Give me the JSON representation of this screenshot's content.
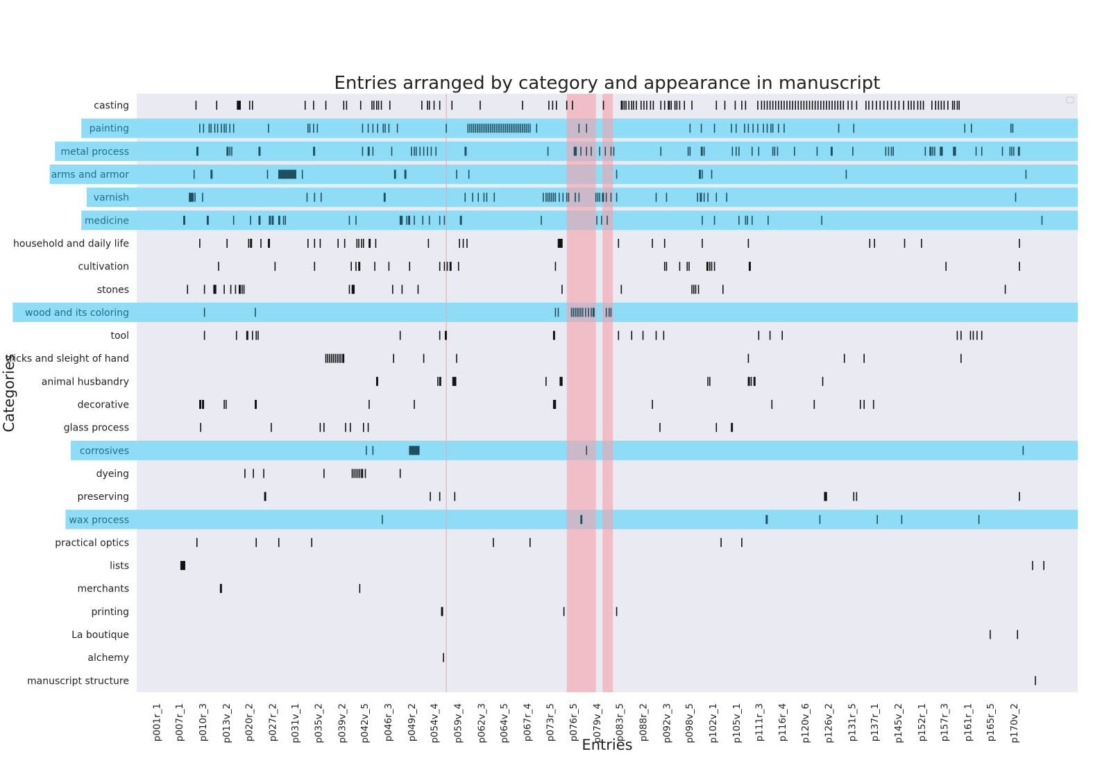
{
  "chart_data": {
    "type": "heatmap",
    "title": "Entries arranged by category and appearance in manuscript",
    "xlabel": "Entries",
    "ylabel": "Categories",
    "x_range": [
      0,
      1000
    ],
    "categories": [
      "casting",
      "painting",
      "metal process",
      "arms and armor",
      "varnish",
      "medicine",
      "household and daily life",
      "cultivation",
      "stones",
      "wood and its coloring",
      "tool",
      "tricks and sleight of hand",
      "animal husbandry",
      "decorative",
      "glass process",
      "corrosives",
      "dyeing",
      "preserving",
      "wax process",
      "practical optics",
      "lists",
      "merchants",
      "printing",
      "La boutique",
      "alchemy",
      "manuscript structure"
    ],
    "highlighted_categories": [
      "painting",
      "metal process",
      "arms and armor",
      "varnish",
      "medicine",
      "wood and its coloring",
      "corrosives",
      "wax process"
    ],
    "highlight_color": "#8fdcf7",
    "shaded_entry_ranges": [
      [
        457,
        488
      ],
      [
        495,
        506
      ]
    ],
    "shade_color": "#f4a0a8",
    "marker_line": 329,
    "x_ticks": [
      {
        "pos": 21,
        "label": "p001r_1"
      },
      {
        "pos": 45,
        "label": "p007r_1"
      },
      {
        "pos": 70,
        "label": "p010r_3"
      },
      {
        "pos": 95,
        "label": "p013v_2"
      },
      {
        "pos": 119,
        "label": "p020r_2"
      },
      {
        "pos": 144,
        "label": "p027r_2"
      },
      {
        "pos": 168,
        "label": "p031v_1"
      },
      {
        "pos": 193,
        "label": "p035v_2"
      },
      {
        "pos": 218,
        "label": "p039v_2"
      },
      {
        "pos": 242,
        "label": "p042v_5"
      },
      {
        "pos": 267,
        "label": "p046r_3"
      },
      {
        "pos": 292,
        "label": "p049r_2"
      },
      {
        "pos": 316,
        "label": "p054v_4"
      },
      {
        "pos": 341,
        "label": "p059v_4"
      },
      {
        "pos": 366,
        "label": "p062v_3"
      },
      {
        "pos": 390,
        "label": "p064v_5"
      },
      {
        "pos": 415,
        "label": "p067r_4"
      },
      {
        "pos": 439,
        "label": "p073r_5"
      },
      {
        "pos": 464,
        "label": "p076r_5"
      },
      {
        "pos": 489,
        "label": "p079v_4"
      },
      {
        "pos": 513,
        "label": "p083r_5"
      },
      {
        "pos": 538,
        "label": "p088r_2"
      },
      {
        "pos": 563,
        "label": "p092v_3"
      },
      {
        "pos": 587,
        "label": "p098v_5"
      },
      {
        "pos": 612,
        "label": "p102v_1"
      },
      {
        "pos": 637,
        "label": "p105v_1"
      },
      {
        "pos": 661,
        "label": "p111r_3"
      },
      {
        "pos": 686,
        "label": "p116r_4"
      },
      {
        "pos": 710,
        "label": "p120v_6"
      },
      {
        "pos": 735,
        "label": "p126v_2"
      },
      {
        "pos": 760,
        "label": "p131r_5"
      },
      {
        "pos": 784,
        "label": "p137r_1"
      },
      {
        "pos": 809,
        "label": "p145v_2"
      },
      {
        "pos": 834,
        "label": "p152r_1"
      },
      {
        "pos": 858,
        "label": "p157r_3"
      },
      {
        "pos": 883,
        "label": "p161r_1"
      },
      {
        "pos": 907,
        "label": "p165r_5"
      },
      {
        "pos": 932,
        "label": "p170v_2"
      }
    ],
    "entries": {
      "casting": [
        63,
        85,
        107,
        108,
        109,
        110,
        120,
        123,
        179,
        188,
        201,
        220,
        223,
        238,
        250,
        252,
        255,
        257,
        260,
        269,
        303,
        309,
        311,
        316,
        322,
        335,
        365,
        410,
        438,
        442,
        446,
        457,
        463,
        496,
        515,
        516,
        518,
        520,
        523,
        526,
        528,
        531,
        536,
        539,
        542,
        546,
        549,
        557,
        561,
        565,
        566,
        568,
        572,
        574,
        577,
        582,
        590,
        616,
        625,
        636,
        643,
        647,
        660,
        664,
        667,
        670,
        673,
        676,
        679,
        682,
        685,
        688,
        691,
        694,
        697,
        700,
        703,
        706,
        709,
        712,
        715,
        718,
        721,
        724,
        727,
        730,
        733,
        736,
        739,
        742,
        745,
        748,
        751,
        756,
        760,
        765,
        775,
        778,
        782,
        786,
        790,
        794,
        798,
        802,
        806,
        810,
        815,
        820,
        823,
        826,
        830,
        833,
        836,
        845,
        849,
        852,
        855,
        858,
        862,
        867,
        869,
        872,
        874
      ],
      "painting": [
        67,
        71,
        77,
        79,
        83,
        86,
        90,
        93,
        95,
        99,
        103,
        140,
        182,
        184,
        188,
        192,
        240,
        246,
        251,
        256,
        262,
        264,
        268,
        277,
        329,
        352,
        354,
        356,
        358,
        360,
        362,
        364,
        366,
        368,
        370,
        372,
        374,
        376,
        378,
        380,
        382,
        384,
        386,
        388,
        390,
        392,
        394,
        396,
        398,
        400,
        402,
        404,
        406,
        408,
        410,
        412,
        414,
        416,
        418,
        425,
        470,
        478,
        588,
        600,
        614,
        632,
        637,
        646,
        650,
        655,
        660,
        666,
        670,
        674,
        676,
        682,
        688,
        746,
        762,
        880,
        887,
        929,
        931
      ],
      "metal process": [
        64,
        65,
        96,
        97,
        99,
        101,
        130,
        131,
        188,
        189,
        240,
        246,
        247,
        251,
        271,
        292,
        295,
        297,
        301,
        305,
        309,
        313,
        318,
        349,
        350,
        437,
        465,
        466,
        467,
        472,
        478,
        483,
        492,
        498,
        504,
        507,
        557,
        586,
        588,
        600,
        601,
        603,
        633,
        637,
        640,
        654,
        661,
        676,
        678,
        681,
        699,
        723,
        738,
        739,
        761,
        796,
        799,
        802,
        804,
        838,
        843,
        844,
        846,
        848,
        854,
        855,
        856,
        868,
        869,
        870,
        892,
        898,
        920,
        928,
        930,
        932,
        937,
        938
      ],
      "arms and armor": [
        61,
        79,
        80,
        139,
        151,
        152,
        153,
        154,
        155,
        156,
        157,
        158,
        159,
        160,
        161,
        162,
        163,
        164,
        165,
        166,
        167,
        168,
        169,
        176,
        274,
        275,
        285,
        286,
        340,
        353,
        510,
        598,
        599,
        601,
        611,
        754,
        945
      ],
      "varnish": [
        56,
        57,
        58,
        59,
        60,
        62,
        70,
        181,
        189,
        196,
        263,
        264,
        349,
        357,
        363,
        369,
        372,
        380,
        432,
        435,
        437,
        439,
        441,
        443,
        445,
        449,
        453,
        457,
        459,
        466,
        466,
        470,
        488,
        490,
        492,
        495,
        496,
        499,
        504,
        510,
        552,
        563,
        596,
        599,
        600,
        603,
        607,
        616,
        627,
        934
      ],
      "medicine": [
        50,
        51,
        75,
        76,
        103,
        121,
        130,
        131,
        141,
        142,
        144,
        145,
        151,
        152,
        156,
        158,
        226,
        233,
        280,
        281,
        282,
        287,
        289,
        290,
        295,
        304,
        311,
        322,
        327,
        344,
        345,
        430,
        489,
        494,
        500,
        601,
        614,
        640,
        647,
        649,
        654,
        671,
        728,
        962
      ],
      "household and daily life": [
        67,
        96,
        119,
        121,
        122,
        132,
        140,
        141,
        182,
        189,
        195,
        214,
        221,
        234,
        236,
        239,
        241,
        247,
        248,
        254,
        310,
        343,
        347,
        351,
        448,
        449,
        450,
        451,
        452,
        512,
        548,
        561,
        601,
        650,
        779,
        784,
        816,
        834,
        938
      ],
      "cultivation": [
        87,
        147,
        189,
        228,
        233,
        236,
        237,
        253,
        268,
        290,
        322,
        327,
        330,
        333,
        334,
        342,
        445,
        561,
        563,
        577,
        585,
        587,
        606,
        607,
        609,
        611,
        614,
        651,
        652,
        860,
        938
      ],
      "stones": [
        54,
        72,
        82,
        83,
        84,
        93,
        100,
        105,
        109,
        110,
        112,
        114,
        226,
        229,
        230,
        231,
        272,
        282,
        299,
        452,
        515,
        590,
        592,
        594,
        597,
        623,
        923
      ],
      "wood and its coloring": [
        72,
        126,
        445,
        448,
        462,
        464,
        466,
        468,
        470,
        472,
        474,
        477,
        480,
        483,
        485,
        486,
        499,
        502,
        504
      ],
      "tool": [
        72,
        106,
        117,
        118,
        123,
        127,
        129,
        280,
        322,
        328,
        329,
        443,
        444,
        512,
        526,
        538,
        552,
        560,
        661,
        673,
        686,
        872,
        876,
        886,
        889,
        893,
        898
      ],
      "tricks and sleight of hand": [
        201,
        203,
        205,
        207,
        209,
        211,
        213,
        215,
        217,
        219,
        220,
        273,
        305,
        340,
        650,
        752,
        773,
        876
      ],
      "animal husbandry": [
        255,
        256,
        320,
        322,
        323,
        336,
        337,
        338,
        339,
        435,
        450,
        451,
        452,
        607,
        609,
        650,
        651,
        653,
        656,
        657,
        729
      ],
      "decorative": [
        67,
        68,
        70,
        71,
        93,
        95,
        126,
        127,
        247,
        295,
        443,
        444,
        445,
        548,
        675,
        720,
        769,
        773,
        783
      ],
      "glass process": [
        68,
        143,
        195,
        199,
        222,
        227,
        241,
        246,
        556,
        616,
        632,
        633
      ],
      "corrosives": [
        244,
        251,
        290,
        291,
        292,
        293,
        294,
        295,
        296,
        297,
        298,
        299,
        300,
        478,
        942
      ],
      "dyeing": [
        115,
        124,
        135,
        199,
        229,
        231,
        233,
        235,
        237,
        239,
        240,
        243,
        280
      ],
      "preserving": [
        136,
        137,
        312,
        322,
        338,
        731,
        732,
        733,
        762,
        765,
        938
      ],
      "wax process": [
        261,
        472,
        473,
        669,
        670,
        726,
        787,
        813,
        895
      ],
      "practical optics": [
        64,
        127,
        151,
        186,
        379,
        418,
        621,
        643
      ],
      "lists": [
        47,
        48,
        49,
        50,
        51,
        952,
        964
      ],
      "merchants": [
        89,
        90,
        237
      ],
      "printing": [
        324,
        325,
        454,
        510
      ],
      "La boutique": [
        907,
        936
      ],
      "alchemy": [
        326
      ],
      "manuscript structure": [
        955
      ]
    }
  }
}
